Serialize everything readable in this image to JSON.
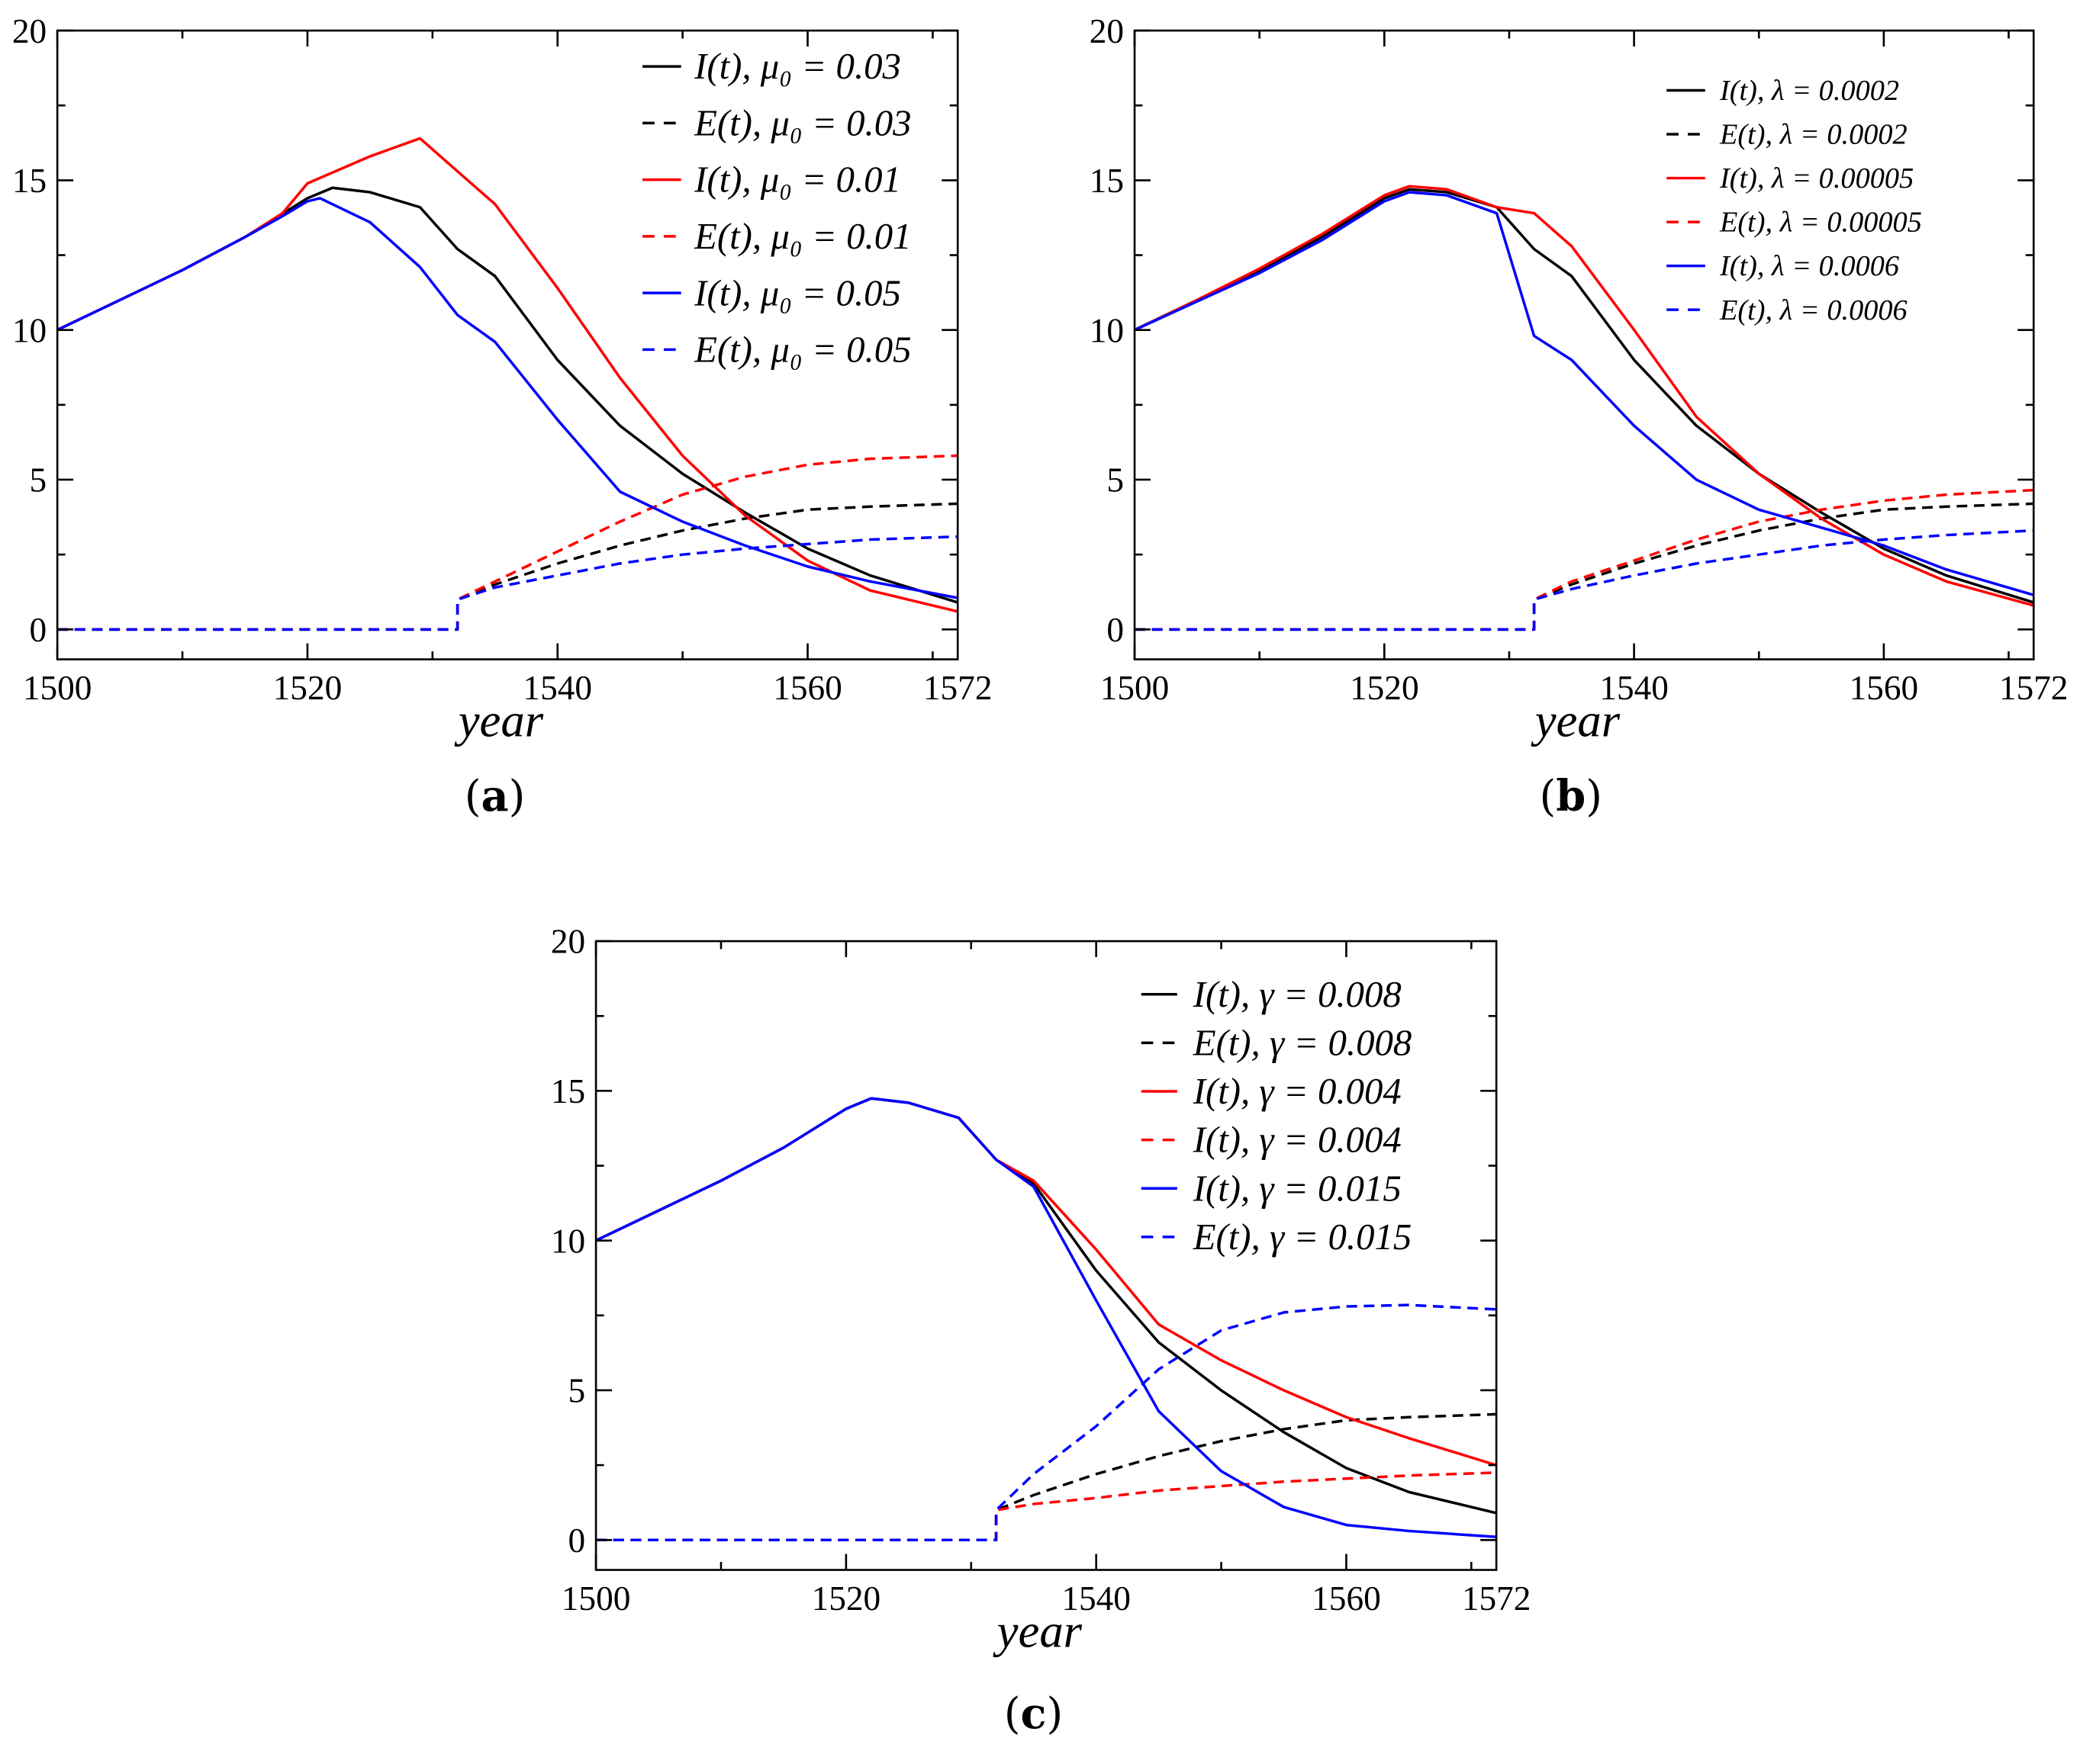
{
  "chart_data": [
    {
      "type": "line",
      "panel_label": "a",
      "xlabel": "year",
      "ylabel": "",
      "xlim": [
        1500,
        1572
      ],
      "ylim": [
        -1,
        20
      ],
      "x_ticks": [
        "1500",
        "1520",
        "1540",
        "1560",
        "1572"
      ],
      "y_ticks": [
        "0",
        "5",
        "10",
        "15",
        "20"
      ],
      "grid": false,
      "legend_position": "top-right",
      "series": [
        {
          "name": "I(t), μ₀ = 0.03",
          "color": "#000000",
          "dashed": false,
          "x": [
            1500,
            1505,
            1510,
            1515,
            1520,
            1522,
            1525,
            1529,
            1532,
            1535,
            1540,
            1545,
            1550,
            1555,
            1560,
            1565,
            1572
          ],
          "y": [
            10,
            11,
            12,
            13.1,
            14.4,
            14.75,
            14.6,
            14.1,
            12.7,
            11.8,
            9.0,
            6.8,
            5.2,
            3.9,
            2.7,
            1.8,
            0.9
          ]
        },
        {
          "name": "E(t), μ₀ = 0.03",
          "color": "#000000",
          "dashed": true,
          "x": [
            1500,
            1532,
            1532,
            1535,
            1540,
            1545,
            1550,
            1555,
            1560,
            1565,
            1572
          ],
          "y": [
            0,
            0,
            1,
            1.5,
            2.2,
            2.8,
            3.3,
            3.7,
            4.0,
            4.1,
            4.2
          ]
        },
        {
          "name": "I(t), μ₀ = 0.01",
          "color": "#ff0000",
          "dashed": false,
          "x": [
            1500,
            1505,
            1510,
            1515,
            1518,
            1520,
            1525,
            1529,
            1532,
            1535,
            1540,
            1545,
            1550,
            1555,
            1560,
            1565,
            1572
          ],
          "y": [
            10,
            11,
            12,
            13.1,
            13.9,
            14.9,
            15.8,
            16.4,
            15.3,
            14.2,
            11.4,
            8.4,
            5.8,
            3.8,
            2.3,
            1.3,
            0.6
          ]
        },
        {
          "name": "E(t), μ₀ = 0.01",
          "color": "#ff0000",
          "dashed": true,
          "x": [
            1500,
            1532,
            1532,
            1535,
            1540,
            1545,
            1550,
            1555,
            1560,
            1565,
            1572
          ],
          "y": [
            0,
            0,
            1,
            1.6,
            2.6,
            3.6,
            4.5,
            5.1,
            5.5,
            5.7,
            5.8
          ]
        },
        {
          "name": "I(t), μ₀ = 0.05",
          "color": "#0000ff",
          "dashed": false,
          "x": [
            1500,
            1505,
            1510,
            1515,
            1518,
            1520,
            1521,
            1525,
            1529,
            1532,
            1535,
            1540,
            1545,
            1550,
            1555,
            1560,
            1565,
            1572
          ],
          "y": [
            10,
            11,
            12,
            13.1,
            13.8,
            14.3,
            14.4,
            13.6,
            12.1,
            10.5,
            9.6,
            7.0,
            4.6,
            3.6,
            2.8,
            2.1,
            1.6,
            1.05
          ]
        },
        {
          "name": "E(t), μ₀ = 0.05",
          "color": "#0000ff",
          "dashed": true,
          "x": [
            1500,
            1532,
            1532,
            1535,
            1540,
            1545,
            1550,
            1555,
            1560,
            1565,
            1572
          ],
          "y": [
            0,
            0,
            1,
            1.4,
            1.8,
            2.2,
            2.5,
            2.7,
            2.85,
            3.0,
            3.1
          ]
        }
      ]
    },
    {
      "type": "line",
      "panel_label": "b",
      "xlabel": "year",
      "ylabel": "",
      "xlim": [
        1500,
        1572
      ],
      "ylim": [
        -1,
        20
      ],
      "x_ticks": [
        "1500",
        "1520",
        "1540",
        "1560",
        "1572"
      ],
      "y_ticks": [
        "0",
        "5",
        "10",
        "15",
        "20"
      ],
      "grid": false,
      "legend_position": "top-right",
      "series": [
        {
          "name": "I(t), λ = 0.0002",
          "color": "#000000",
          "dashed": false,
          "x": [
            1500,
            1505,
            1510,
            1515,
            1520,
            1522,
            1525,
            1529,
            1532,
            1535,
            1540,
            1545,
            1550,
            1555,
            1560,
            1565,
            1572
          ],
          "y": [
            10,
            11,
            12,
            13.1,
            14.4,
            14.7,
            14.6,
            14.1,
            12.7,
            11.8,
            9.0,
            6.8,
            5.2,
            3.9,
            2.7,
            1.8,
            0.9
          ]
        },
        {
          "name": "E(t), λ = 0.0002",
          "color": "#000000",
          "dashed": true,
          "x": [
            1500,
            1532,
            1532,
            1535,
            1540,
            1545,
            1550,
            1555,
            1560,
            1565,
            1572
          ],
          "y": [
            0,
            0,
            1,
            1.5,
            2.2,
            2.8,
            3.3,
            3.7,
            4.0,
            4.1,
            4.2
          ]
        },
        {
          "name": "I(t), λ = 0.00005",
          "color": "#ff0000",
          "dashed": false,
          "x": [
            1500,
            1505,
            1510,
            1515,
            1520,
            1522,
            1525,
            1529,
            1532,
            1535,
            1540,
            1545,
            1550,
            1555,
            1560,
            1565,
            1572
          ],
          "y": [
            10,
            11,
            12.05,
            13.2,
            14.5,
            14.8,
            14.7,
            14.1,
            13.9,
            12.8,
            10.0,
            7.1,
            5.2,
            3.7,
            2.5,
            1.6,
            0.8
          ]
        },
        {
          "name": "E(t), λ = 0.00005",
          "color": "#ff0000",
          "dashed": true,
          "x": [
            1500,
            1532,
            1532,
            1535,
            1540,
            1545,
            1550,
            1555,
            1560,
            1565,
            1572
          ],
          "y": [
            0,
            0,
            1,
            1.6,
            2.3,
            3.0,
            3.6,
            4.0,
            4.3,
            4.5,
            4.65
          ]
        },
        {
          "name": "I(t), λ = 0.0006",
          "color": "#0000ff",
          "dashed": false,
          "x": [
            1500,
            1505,
            1510,
            1515,
            1520,
            1522,
            1525,
            1529,
            1532,
            1535,
            1540,
            1545,
            1550,
            1555,
            1560,
            1565,
            1572
          ],
          "y": [
            10,
            10.95,
            11.9,
            13.0,
            14.3,
            14.6,
            14.5,
            13.9,
            9.8,
            9.0,
            6.8,
            5.0,
            4.0,
            3.4,
            2.8,
            2.0,
            1.15
          ]
        },
        {
          "name": "E(t), λ = 0.0006",
          "color": "#0000ff",
          "dashed": true,
          "x": [
            1500,
            1532,
            1532,
            1535,
            1540,
            1545,
            1550,
            1555,
            1560,
            1565,
            1572
          ],
          "y": [
            0,
            0,
            1,
            1.35,
            1.8,
            2.2,
            2.5,
            2.8,
            3.0,
            3.15,
            3.3
          ]
        }
      ]
    },
    {
      "type": "line",
      "panel_label": "c",
      "xlabel": "year",
      "ylabel": "",
      "xlim": [
        1500,
        1572
      ],
      "ylim": [
        -1,
        20
      ],
      "x_ticks": [
        "1500",
        "1520",
        "1540",
        "1560",
        "1572"
      ],
      "y_ticks": [
        "0",
        "5",
        "10",
        "15",
        "20"
      ],
      "grid": false,
      "legend_position": "top-right",
      "series": [
        {
          "name": "I(t), γ = 0.008",
          "color": "#000000",
          "dashed": false,
          "x": [
            1500,
            1505,
            1510,
            1515,
            1520,
            1522,
            1525,
            1529,
            1532,
            1535,
            1540,
            1545,
            1550,
            1555,
            1560,
            1565,
            1572
          ],
          "y": [
            10,
            11,
            12,
            13.1,
            14.4,
            14.75,
            14.6,
            14.1,
            12.7,
            11.9,
            9.0,
            6.6,
            5.0,
            3.6,
            2.4,
            1.6,
            0.9
          ]
        },
        {
          "name": "E(t), γ = 0.008",
          "color": "#000000",
          "dashed": true,
          "x": [
            1500,
            1532,
            1532,
            1535,
            1540,
            1545,
            1550,
            1555,
            1560,
            1565,
            1572
          ],
          "y": [
            0,
            0,
            1,
            1.5,
            2.2,
            2.8,
            3.3,
            3.7,
            4.0,
            4.1,
            4.2
          ]
        },
        {
          "name": "I(t), γ = 0.004",
          "color": "#ff0000",
          "dashed": false,
          "x": [
            1500,
            1505,
            1510,
            1515,
            1520,
            1522,
            1525,
            1529,
            1532,
            1535,
            1540,
            1545,
            1550,
            1555,
            1560,
            1565,
            1572
          ],
          "y": [
            10,
            11,
            12,
            13.1,
            14.4,
            14.75,
            14.6,
            14.1,
            12.7,
            12.0,
            9.7,
            7.2,
            6.0,
            5.0,
            4.1,
            3.4,
            2.5
          ]
        },
        {
          "name": "I(t), γ = 0.004",
          "color": "#ff0000",
          "dashed": true,
          "x": [
            1500,
            1532,
            1532,
            1535,
            1540,
            1545,
            1550,
            1555,
            1560,
            1565,
            1572
          ],
          "y": [
            0,
            0,
            1,
            1.2,
            1.4,
            1.65,
            1.8,
            1.95,
            2.05,
            2.15,
            2.25
          ]
        },
        {
          "name": "I(t), γ = 0.015",
          "color": "#0000ff",
          "dashed": false,
          "x": [
            1500,
            1505,
            1510,
            1515,
            1520,
            1522,
            1525,
            1529,
            1532,
            1535,
            1540,
            1545,
            1550,
            1555,
            1560,
            1565,
            1572
          ],
          "y": [
            10,
            11,
            12,
            13.1,
            14.4,
            14.75,
            14.6,
            14.1,
            12.7,
            11.8,
            8.0,
            4.3,
            2.3,
            1.1,
            0.5,
            0.3,
            0.1
          ]
        },
        {
          "name": "E(t), γ = 0.015",
          "color": "#0000ff",
          "dashed": true,
          "x": [
            1500,
            1532,
            1532,
            1535,
            1540,
            1545,
            1550,
            1555,
            1560,
            1565,
            1572
          ],
          "y": [
            0,
            0,
            1,
            2.2,
            3.8,
            5.7,
            7.0,
            7.6,
            7.8,
            7.85,
            7.7
          ]
        }
      ]
    }
  ]
}
